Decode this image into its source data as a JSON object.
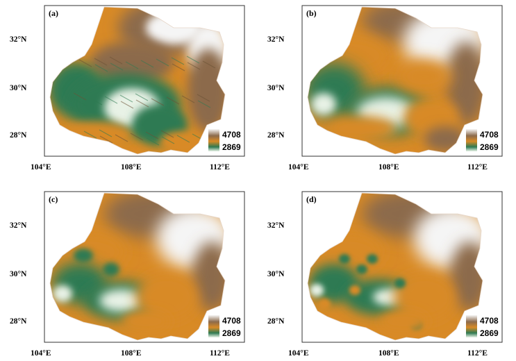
{
  "panels": [
    {
      "label": "(a)",
      "kind": "dem"
    },
    {
      "label": "(b)",
      "kind": "interp_smooth"
    },
    {
      "label": "(c)",
      "kind": "interp_mid"
    },
    {
      "label": "(d)",
      "kind": "interp_fine"
    }
  ],
  "axes": {
    "x_ticks": [
      "104°E",
      "108°E",
      "112°E"
    ],
    "y_ticks": [
      "32°N",
      "30°N",
      "28°N"
    ]
  },
  "legend": {
    "max": "4708",
    "min": "2869"
  },
  "colors": {
    "high": "#f5f5f5",
    "upper": "#8c6a4b",
    "mid": "#d88a26",
    "lower": "#2f7a52",
    "low": "#e8f2e6",
    "frame": "#333333"
  }
}
